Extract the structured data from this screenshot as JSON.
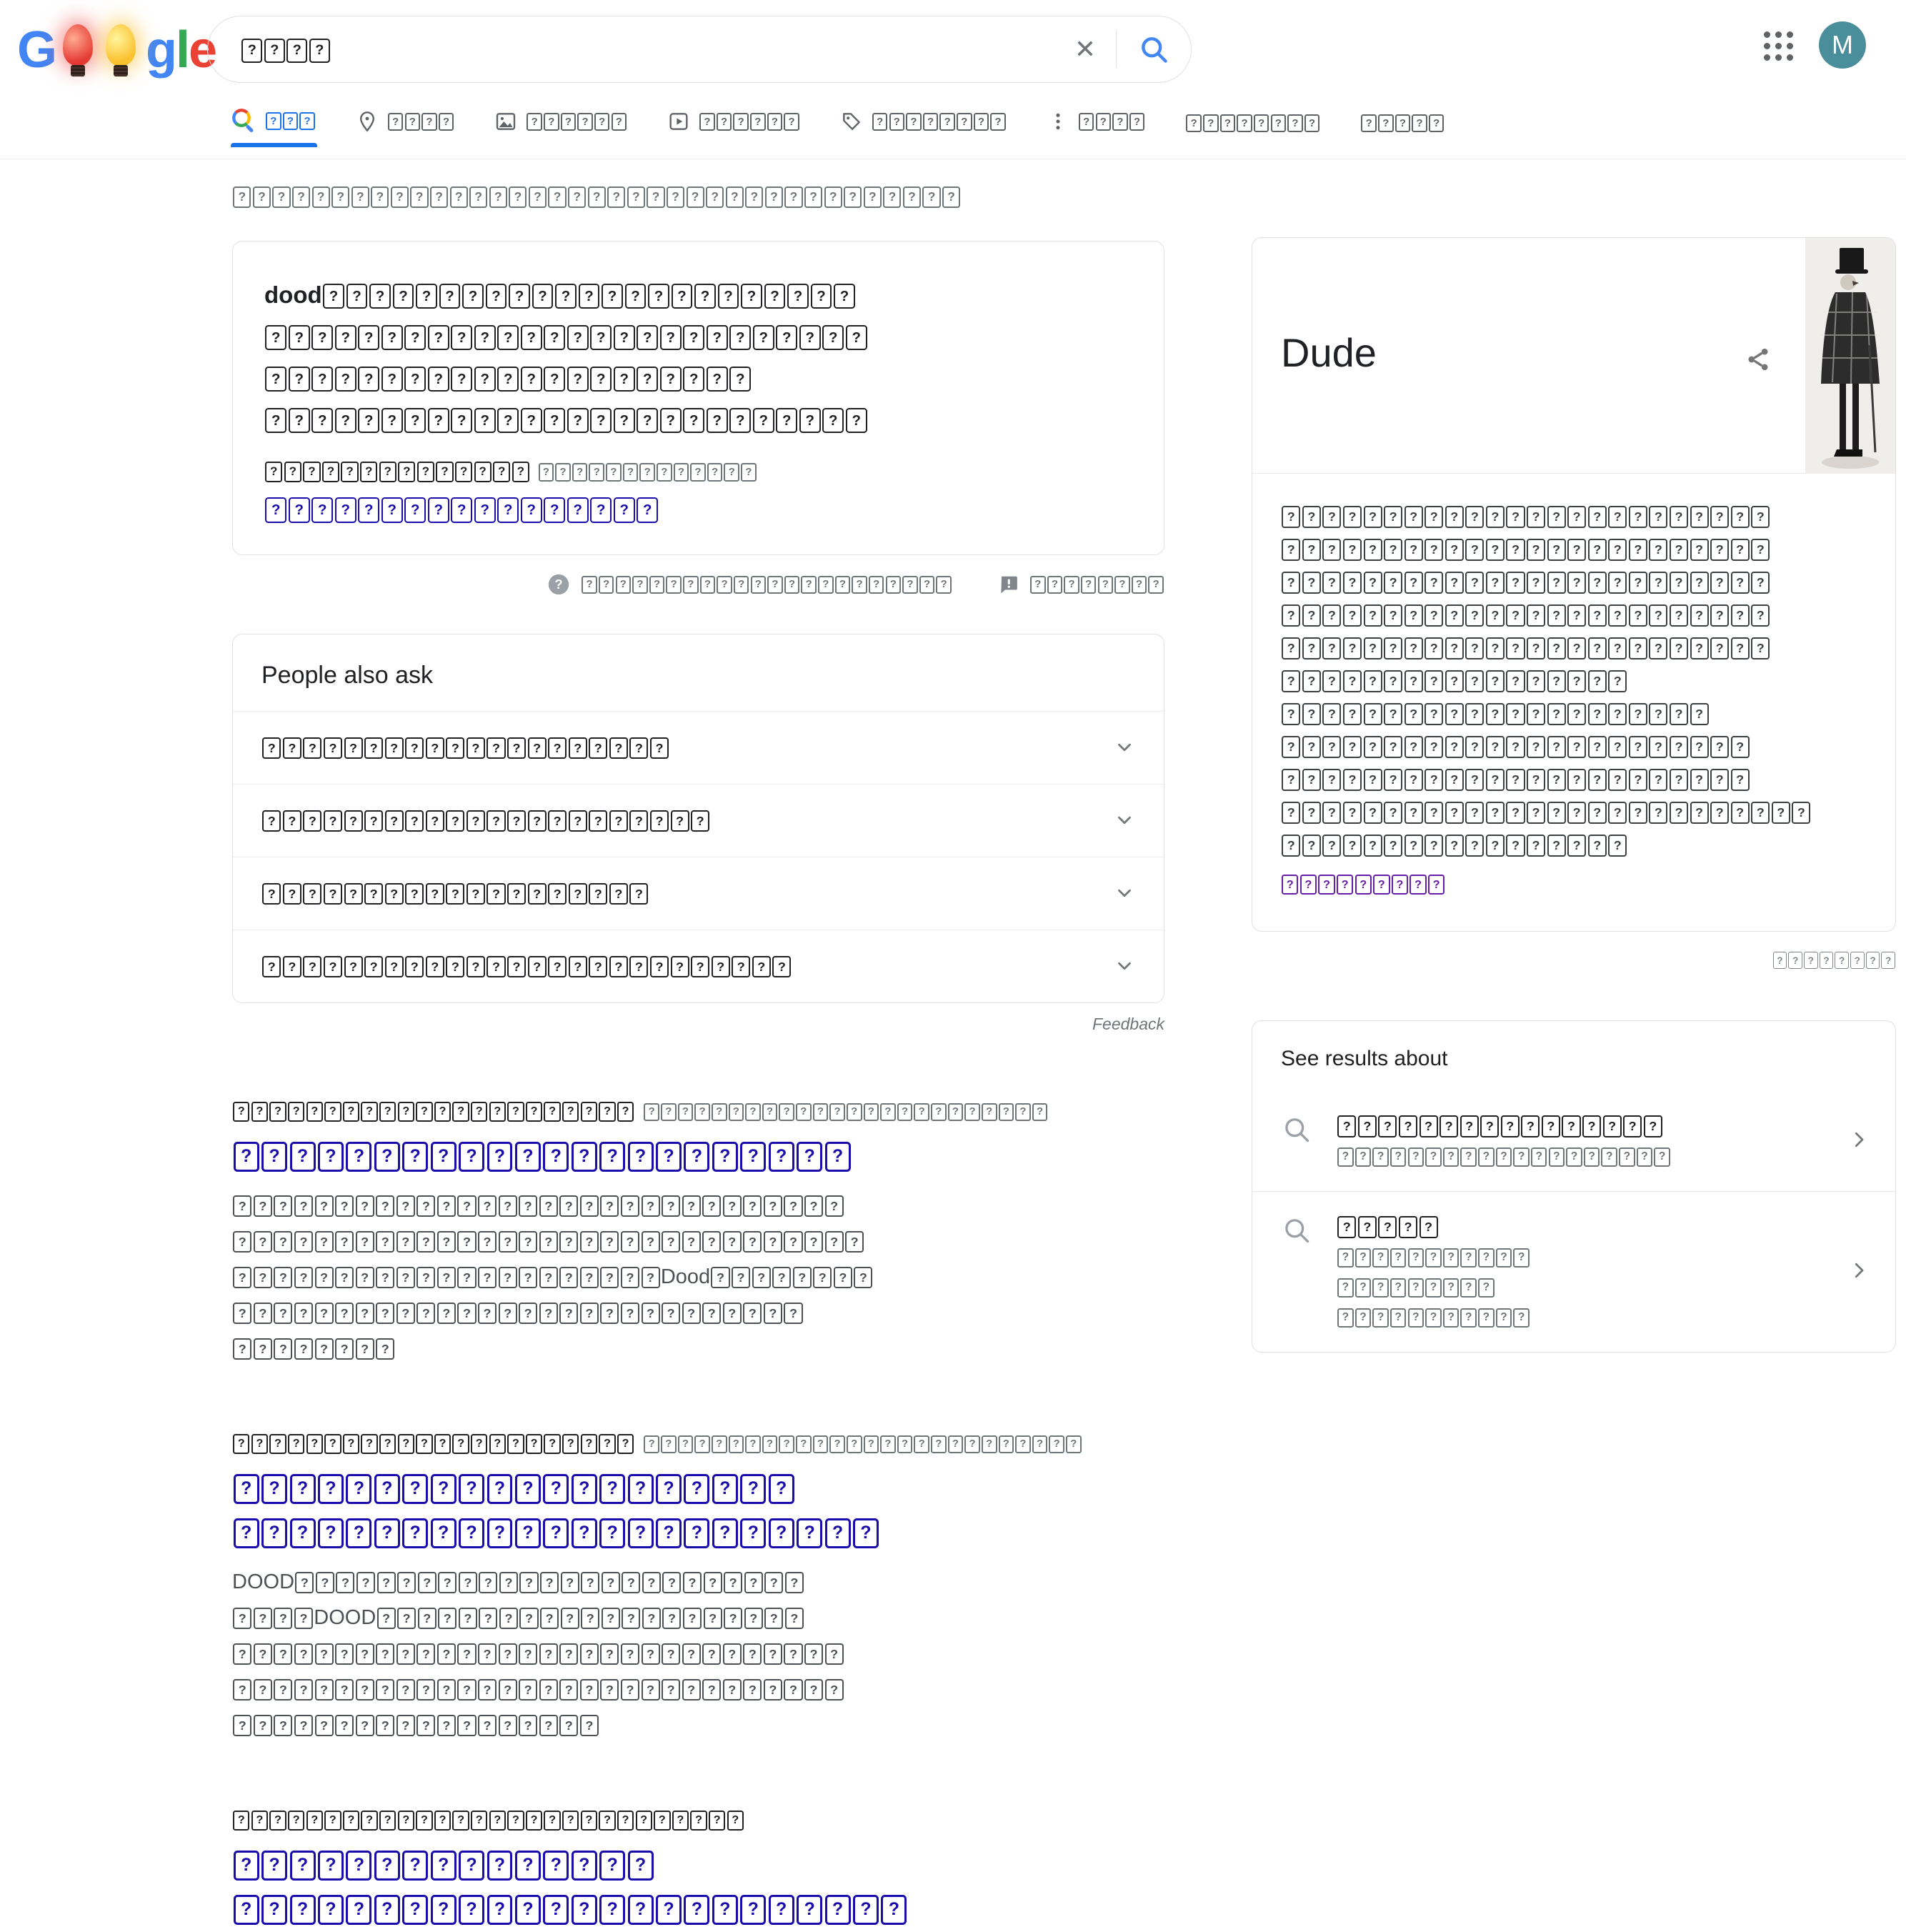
{
  "colors": {
    "accent_blue": "#1a73e8",
    "link_blue": "#1a0dab",
    "visited_purple": "#681da8",
    "text_grey": "#70757a",
    "avatar_teal": "#4A8E9B"
  },
  "header": {
    "logo_letters": [
      "G",
      "o",
      "o",
      "g",
      "l",
      "e"
    ],
    "logo_doodle": "christmas-light-bulbs",
    "query": "????",
    "clear_label": "✕",
    "icons": [
      "clear-icon",
      "search-icon",
      "apps-grid-icon",
      "avatar"
    ],
    "avatar_letter": "M"
  },
  "tabs": {
    "items": [
      {
        "icon": "search-icon",
        "label": "???",
        "active": true
      },
      {
        "icon": "location-pin-icon",
        "label": "????",
        "active": false
      },
      {
        "icon": "image-icon",
        "label": "??????",
        "active": false
      },
      {
        "icon": "video-icon",
        "label": "??????",
        "active": false
      },
      {
        "icon": "tag-icon",
        "label": "????????",
        "active": false
      },
      {
        "icon": "more-icon",
        "label": "????",
        "active": false
      },
      {
        "icon": null,
        "label": "????????",
        "active": false
      },
      {
        "icon": null,
        "label": "?????",
        "active": false
      }
    ]
  },
  "stats": {
    "text": "?????????????????????????????????????"
  },
  "snippet": {
    "lines": [
      "dood???????????????????????",
      "??????????????????????????",
      "?????????????????????",
      "??????????????????????????"
    ],
    "source_bold": "??????????????",
    "source_grey": "?????????????",
    "link": "?????????????????",
    "about": "??????????????????????",
    "feedback": "????????"
  },
  "paa": {
    "title": "People also ask",
    "questions": [
      "????????????????????",
      "??????????????????????",
      "???????????????????",
      "??????????????????????????"
    ],
    "feedback": "Feedback"
  },
  "kp": {
    "title": "Dude",
    "image": "black-and-white illustration of a dandy in top hat and plaid coat with cane",
    "body": [
      "????????????????????????",
      "????????????????????????",
      "????????????????????????",
      "????????????????????????",
      "????????????????????????",
      "?????????????????",
      "?????????????????????",
      "???????????????????????",
      "???????????????????????",
      "??????????????????????????",
      "?????????????????"
    ],
    "link": "?????????",
    "feedback": "????????"
  },
  "sra": {
    "title": "See results about",
    "items": [
      {
        "title": "????????????????",
        "subs": [
          "???????????????????"
        ]
      },
      {
        "title": "?????",
        "subs": [
          "???????????",
          "?????????",
          "???????????"
        ]
      }
    ]
  },
  "results": [
    {
      "site": "??????????????????????",
      "url": "????????????????????????",
      "title_lines": [
        "??????????????????????"
      ],
      "desc": [
        "??????????????????????????????",
        "???????????????????????????????",
        "?????????????????????Dood????????",
        "????????????????????????????",
        "????????"
      ]
    },
    {
      "site": "??????????????????????",
      "url": "??????????????????????????",
      "title_lines": [
        "????????????????????",
        "???????????????????????"
      ],
      "desc": [
        "DOOD?????????????????????????",
        "????DOOD?????????????????????",
        "??????????????????????????????",
        "??????????????????????????????",
        "??????????????????"
      ]
    },
    {
      "site": "????????????????????????????",
      "url": "",
      "title_lines": [
        "???????????????",
        "????????????????????????"
      ],
      "desc": []
    }
  ]
}
